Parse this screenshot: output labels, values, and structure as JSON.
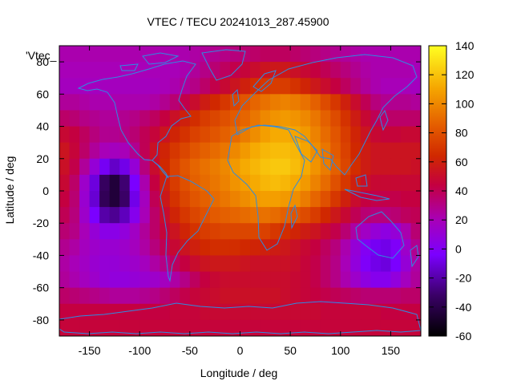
{
  "chart_data": {
    "type": "heatmap",
    "title": "VTEC / TECU 20241013_287.45900",
    "xlabel": "Longitude / deg",
    "ylabel": "Latitude / deg",
    "key_label": "'Vtec_",
    "xlim": [
      -180,
      180
    ],
    "ylim": [
      -90,
      90
    ],
    "x_ticks": [
      -150,
      -100,
      -50,
      0,
      50,
      100,
      150
    ],
    "y_ticks": [
      -80,
      -60,
      -40,
      -20,
      0,
      20,
      40,
      60,
      80
    ],
    "colorbar": {
      "min": -60,
      "max": 140,
      "ticks": [
        -60,
        -40,
        -20,
        0,
        20,
        40,
        60,
        80,
        100,
        120,
        140
      ]
    },
    "grid": false,
    "lon_step": 10,
    "lat_step": 10,
    "lons": [
      -175,
      -165,
      -155,
      -145,
      -135,
      -125,
      -115,
      -105,
      -95,
      -85,
      -75,
      -65,
      -55,
      -45,
      -35,
      -25,
      -15,
      -5,
      5,
      15,
      25,
      35,
      45,
      55,
      65,
      75,
      85,
      95,
      105,
      115,
      125,
      135,
      145,
      155,
      165,
      175
    ],
    "lats": [
      85,
      75,
      65,
      55,
      45,
      35,
      25,
      15,
      5,
      -5,
      -15,
      -25,
      -35,
      -45,
      -55,
      -65,
      -75,
      -85
    ],
    "values": [
      [
        22,
        22,
        22,
        22,
        22,
        22,
        22,
        22,
        22,
        22,
        22,
        22,
        22,
        24,
        26,
        28,
        30,
        32,
        34,
        36,
        38,
        38,
        38,
        36,
        34,
        32,
        30,
        28,
        26,
        24,
        22,
        22,
        22,
        22,
        22,
        22
      ],
      [
        20,
        20,
        20,
        20,
        20,
        20,
        20,
        20,
        20,
        20,
        20,
        20,
        22,
        26,
        30,
        34,
        38,
        42,
        46,
        50,
        54,
        56,
        56,
        52,
        48,
        44,
        40,
        36,
        32,
        28,
        24,
        22,
        22,
        22,
        22,
        20
      ],
      [
        18,
        18,
        18,
        18,
        18,
        18,
        18,
        18,
        18,
        18,
        20,
        22,
        26,
        30,
        36,
        42,
        48,
        54,
        60,
        66,
        70,
        72,
        72,
        68,
        62,
        56,
        50,
        44,
        38,
        32,
        26,
        22,
        20,
        20,
        20,
        18
      ],
      [
        26,
        26,
        24,
        22,
        22,
        22,
        22,
        22,
        22,
        24,
        28,
        34,
        42,
        50,
        58,
        64,
        70,
        76,
        82,
        88,
        92,
        96,
        98,
        96,
        92,
        86,
        78,
        70,
        60,
        50,
        40,
        32,
        28,
        28,
        28,
        26
      ],
      [
        36,
        34,
        30,
        28,
        26,
        26,
        28,
        30,
        34,
        38,
        44,
        52,
        60,
        66,
        72,
        76,
        80,
        84,
        88,
        94,
        100,
        104,
        106,
        104,
        100,
        94,
        86,
        78,
        68,
        58,
        48,
        40,
        36,
        36,
        36,
        36
      ],
      [
        48,
        44,
        38,
        32,
        28,
        28,
        30,
        34,
        40,
        46,
        54,
        62,
        68,
        74,
        78,
        82,
        86,
        90,
        96,
        102,
        108,
        112,
        112,
        110,
        106,
        98,
        90,
        82,
        72,
        62,
        54,
        48,
        46,
        46,
        48,
        48
      ],
      [
        54,
        46,
        36,
        26,
        20,
        18,
        20,
        28,
        40,
        52,
        62,
        70,
        76,
        82,
        86,
        90,
        94,
        100,
        106,
        112,
        116,
        118,
        118,
        116,
        110,
        102,
        94,
        84,
        74,
        64,
        58,
        54,
        54,
        54,
        54,
        54
      ],
      [
        52,
        42,
        26,
        10,
        -6,
        -14,
        -8,
        10,
        32,
        50,
        64,
        74,
        82,
        88,
        92,
        96,
        100,
        106,
        112,
        116,
        120,
        122,
        122,
        118,
        112,
        104,
        96,
        86,
        76,
        66,
        58,
        54,
        54,
        54,
        54,
        52
      ],
      [
        48,
        36,
        14,
        -10,
        -34,
        -44,
        -30,
        -4,
        22,
        44,
        60,
        72,
        80,
        86,
        90,
        94,
        98,
        104,
        108,
        112,
        116,
        118,
        116,
        112,
        106,
        98,
        90,
        80,
        70,
        60,
        52,
        48,
        48,
        48,
        48,
        48
      ],
      [
        44,
        34,
        12,
        -12,
        -36,
        -44,
        -32,
        -8,
        18,
        40,
        56,
        68,
        76,
        82,
        86,
        90,
        94,
        98,
        102,
        106,
        108,
        108,
        106,
        102,
        96,
        88,
        80,
        70,
        60,
        50,
        44,
        42,
        42,
        42,
        44,
        44
      ],
      [
        40,
        32,
        14,
        -4,
        -20,
        -24,
        -16,
        2,
        20,
        36,
        50,
        62,
        70,
        76,
        80,
        84,
        86,
        88,
        90,
        92,
        92,
        90,
        86,
        82,
        78,
        72,
        64,
        56,
        48,
        40,
        34,
        32,
        32,
        34,
        38,
        40
      ],
      [
        34,
        30,
        20,
        10,
        4,
        4,
        8,
        16,
        26,
        36,
        46,
        54,
        62,
        68,
        72,
        74,
        76,
        76,
        76,
        76,
        74,
        70,
        66,
        62,
        58,
        54,
        48,
        42,
        34,
        24,
        16,
        10,
        6,
        10,
        22,
        34
      ],
      [
        28,
        24,
        18,
        14,
        12,
        12,
        14,
        18,
        24,
        32,
        40,
        48,
        54,
        60,
        64,
        66,
        66,
        66,
        64,
        62,
        60,
        58,
        56,
        52,
        48,
        44,
        38,
        32,
        22,
        10,
        0,
        -6,
        -8,
        -2,
        14,
        28
      ],
      [
        24,
        20,
        16,
        12,
        10,
        10,
        12,
        14,
        18,
        24,
        30,
        38,
        44,
        50,
        54,
        56,
        56,
        56,
        54,
        52,
        52,
        52,
        52,
        50,
        46,
        42,
        36,
        30,
        20,
        8,
        -2,
        -8,
        -10,
        -4,
        10,
        24
      ],
      [
        26,
        22,
        18,
        14,
        10,
        8,
        8,
        10,
        12,
        14,
        18,
        24,
        30,
        38,
        44,
        48,
        50,
        50,
        50,
        50,
        50,
        50,
        50,
        48,
        46,
        42,
        36,
        30,
        22,
        14,
        6,
        2,
        2,
        8,
        18,
        26
      ],
      [
        36,
        34,
        32,
        30,
        28,
        26,
        26,
        26,
        28,
        30,
        34,
        38,
        42,
        46,
        48,
        50,
        52,
        52,
        52,
        52,
        52,
        52,
        50,
        48,
        46,
        44,
        42,
        40,
        38,
        36,
        34,
        34,
        34,
        34,
        36,
        36
      ],
      [
        44,
        44,
        44,
        44,
        44,
        44,
        44,
        44,
        44,
        44,
        44,
        46,
        46,
        46,
        48,
        48,
        48,
        48,
        48,
        48,
        48,
        48,
        48,
        48,
        48,
        48,
        46,
        46,
        46,
        46,
        46,
        46,
        44,
        44,
        44,
        44
      ],
      [
        46,
        46,
        46,
        46,
        46,
        46,
        46,
        46,
        46,
        46,
        46,
        46,
        46,
        46,
        46,
        46,
        46,
        46,
        46,
        46,
        46,
        46,
        46,
        46,
        46,
        46,
        46,
        46,
        46,
        46,
        46,
        46,
        46,
        46,
        46,
        46
      ]
    ]
  }
}
